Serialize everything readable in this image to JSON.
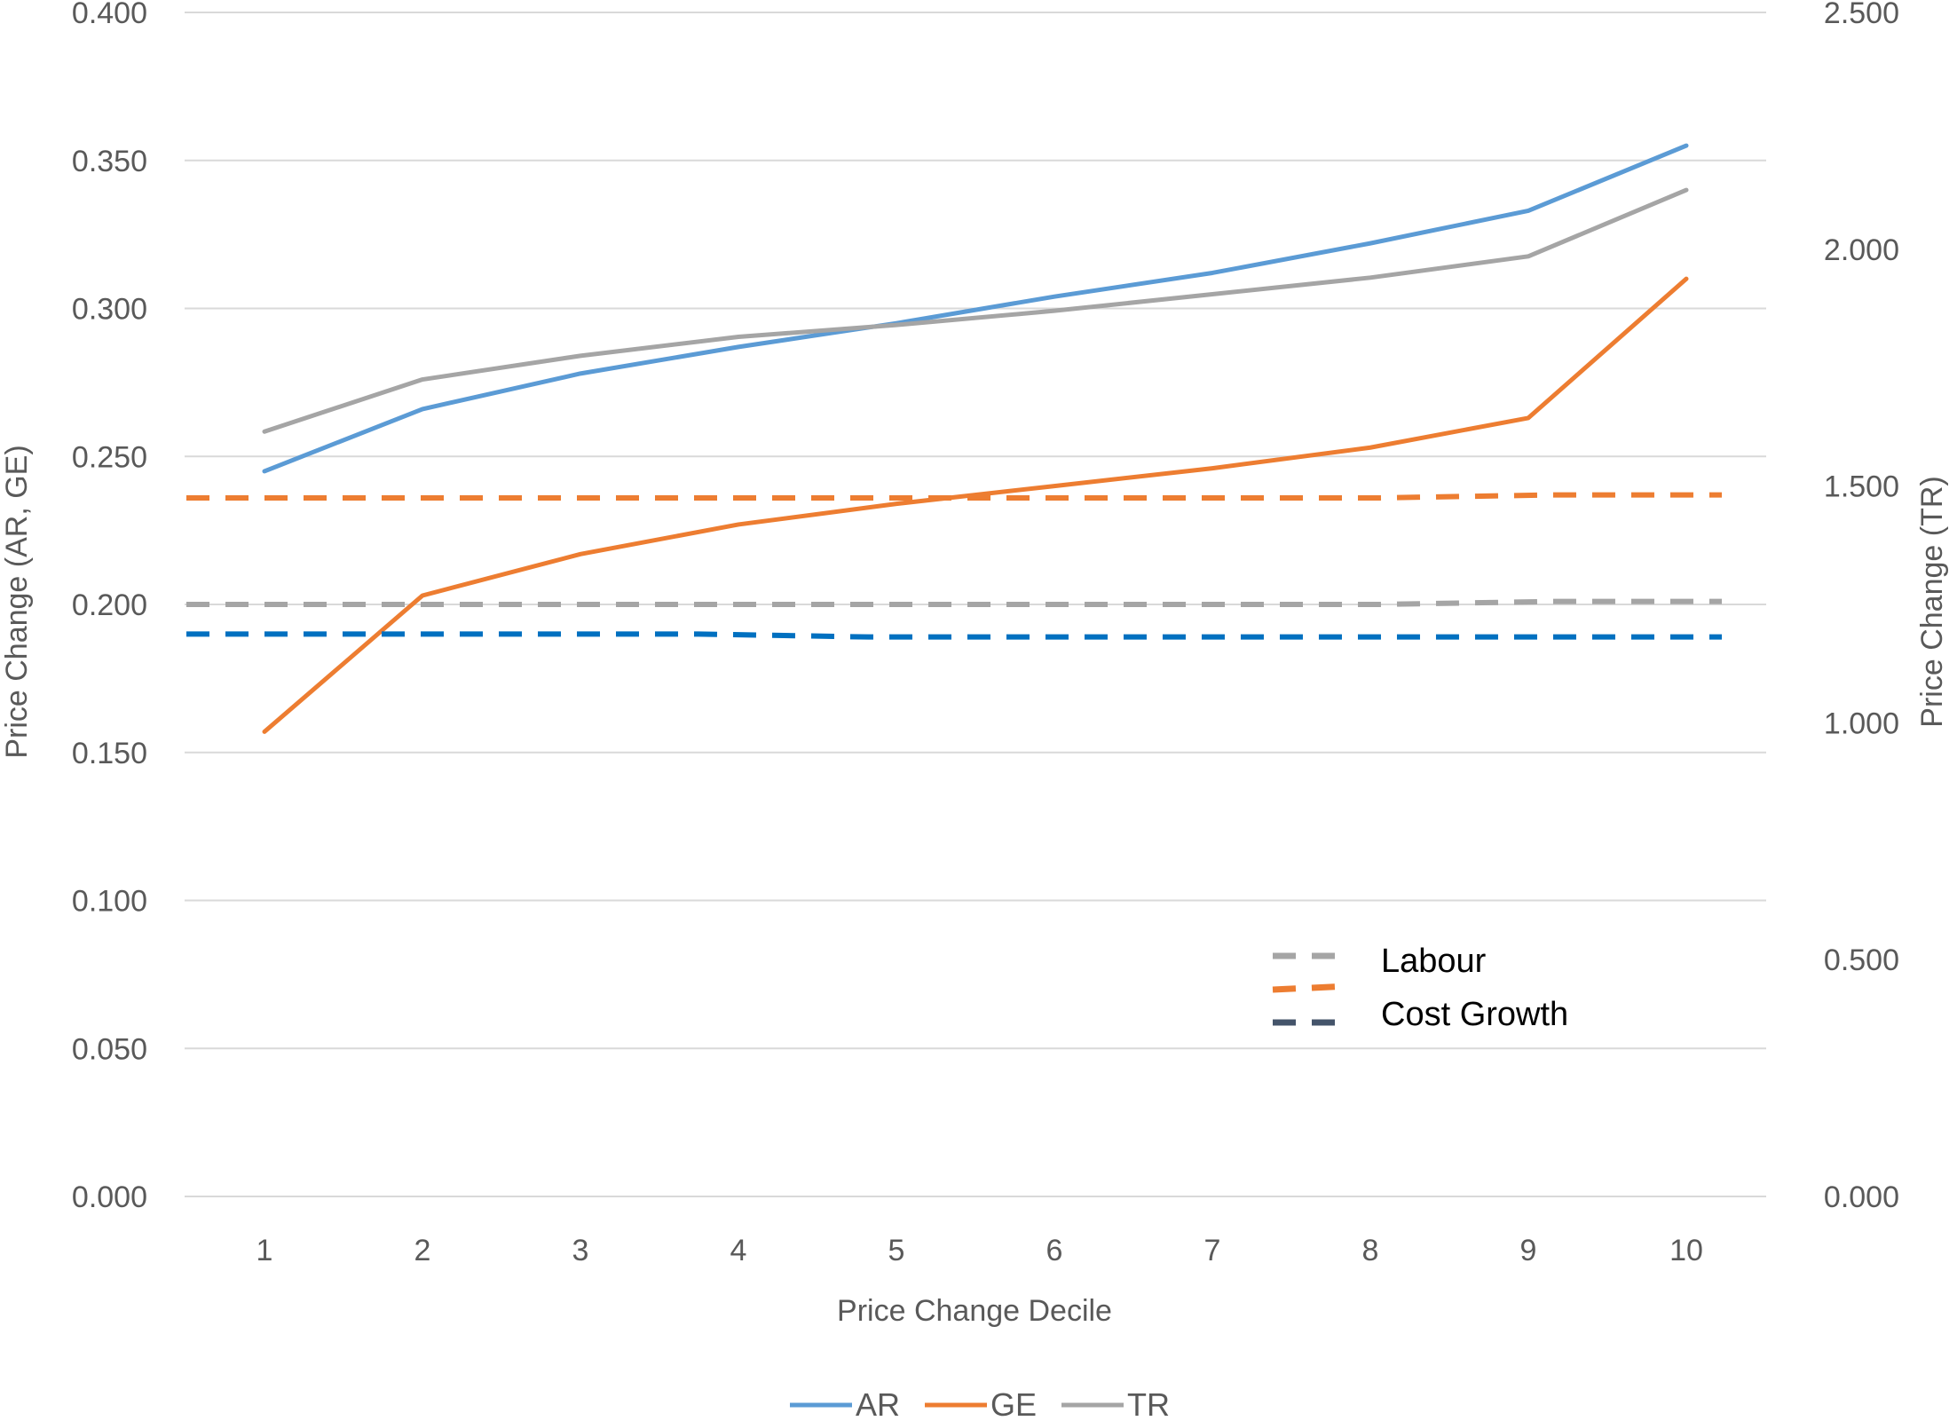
{
  "chart_data": {
    "type": "line",
    "title": "",
    "xlabel": "Price Change Decile",
    "ylabel": "Price Change (AR, GE)",
    "y2label": "Price Change (TR)",
    "categories": [
      "1",
      "2",
      "3",
      "4",
      "5",
      "6",
      "7",
      "8",
      "9",
      "10"
    ],
    "ylim": [
      0,
      0.4
    ],
    "y2lim": [
      0,
      2.5
    ],
    "yticks": [
      "0.000",
      "0.050",
      "0.100",
      "0.150",
      "0.200",
      "0.250",
      "0.300",
      "0.350",
      "0.400"
    ],
    "y2ticks": [
      "0.000",
      "0.500",
      "1.000",
      "1.500",
      "2.000",
      "2.500"
    ],
    "grid": true,
    "legend_position": "bottom",
    "series": [
      {
        "name": "AR",
        "axis": "left",
        "style": "solid",
        "color": "#5B9BD5",
        "values": [
          0.245,
          0.266,
          0.278,
          0.287,
          0.295,
          0.304,
          0.312,
          0.322,
          0.333,
          0.355
        ]
      },
      {
        "name": "GE",
        "axis": "left",
        "style": "solid",
        "color": "#ED7D31",
        "values": [
          0.157,
          0.203,
          0.217,
          0.227,
          0.234,
          0.24,
          0.246,
          0.253,
          0.263,
          0.31
        ]
      },
      {
        "name": "TR",
        "axis": "right",
        "style": "solid",
        "color": "#A5A5A5",
        "values": [
          1.615,
          1.725,
          1.775,
          1.815,
          1.84,
          1.87,
          1.905,
          1.94,
          1.985,
          2.125
        ]
      },
      {
        "axis": "left",
        "style": "dashed",
        "color": "#A5A5A5",
        "values": [
          0.2,
          0.2,
          0.2,
          0.2,
          0.2,
          0.2,
          0.2,
          0.2,
          0.201,
          0.201
        ]
      },
      {
        "axis": "left",
        "style": "dashed",
        "color": "#ED7D31",
        "values": [
          0.236,
          0.236,
          0.236,
          0.236,
          0.236,
          0.236,
          0.236,
          0.236,
          0.237,
          0.237
        ]
      },
      {
        "axis": "left",
        "style": "dashed",
        "color": "#0070C0",
        "values": [
          0.19,
          0.19,
          0.19,
          0.19,
          0.189,
          0.189,
          0.189,
          0.189,
          0.189,
          0.189
        ]
      }
    ],
    "annotation_legend": [
      {
        "label": "Labour",
        "color": "#A5A5A5"
      },
      {
        "label": "",
        "color": "#ED7D31"
      },
      {
        "label": "Cost Growth",
        "color": "#44546A"
      }
    ]
  }
}
